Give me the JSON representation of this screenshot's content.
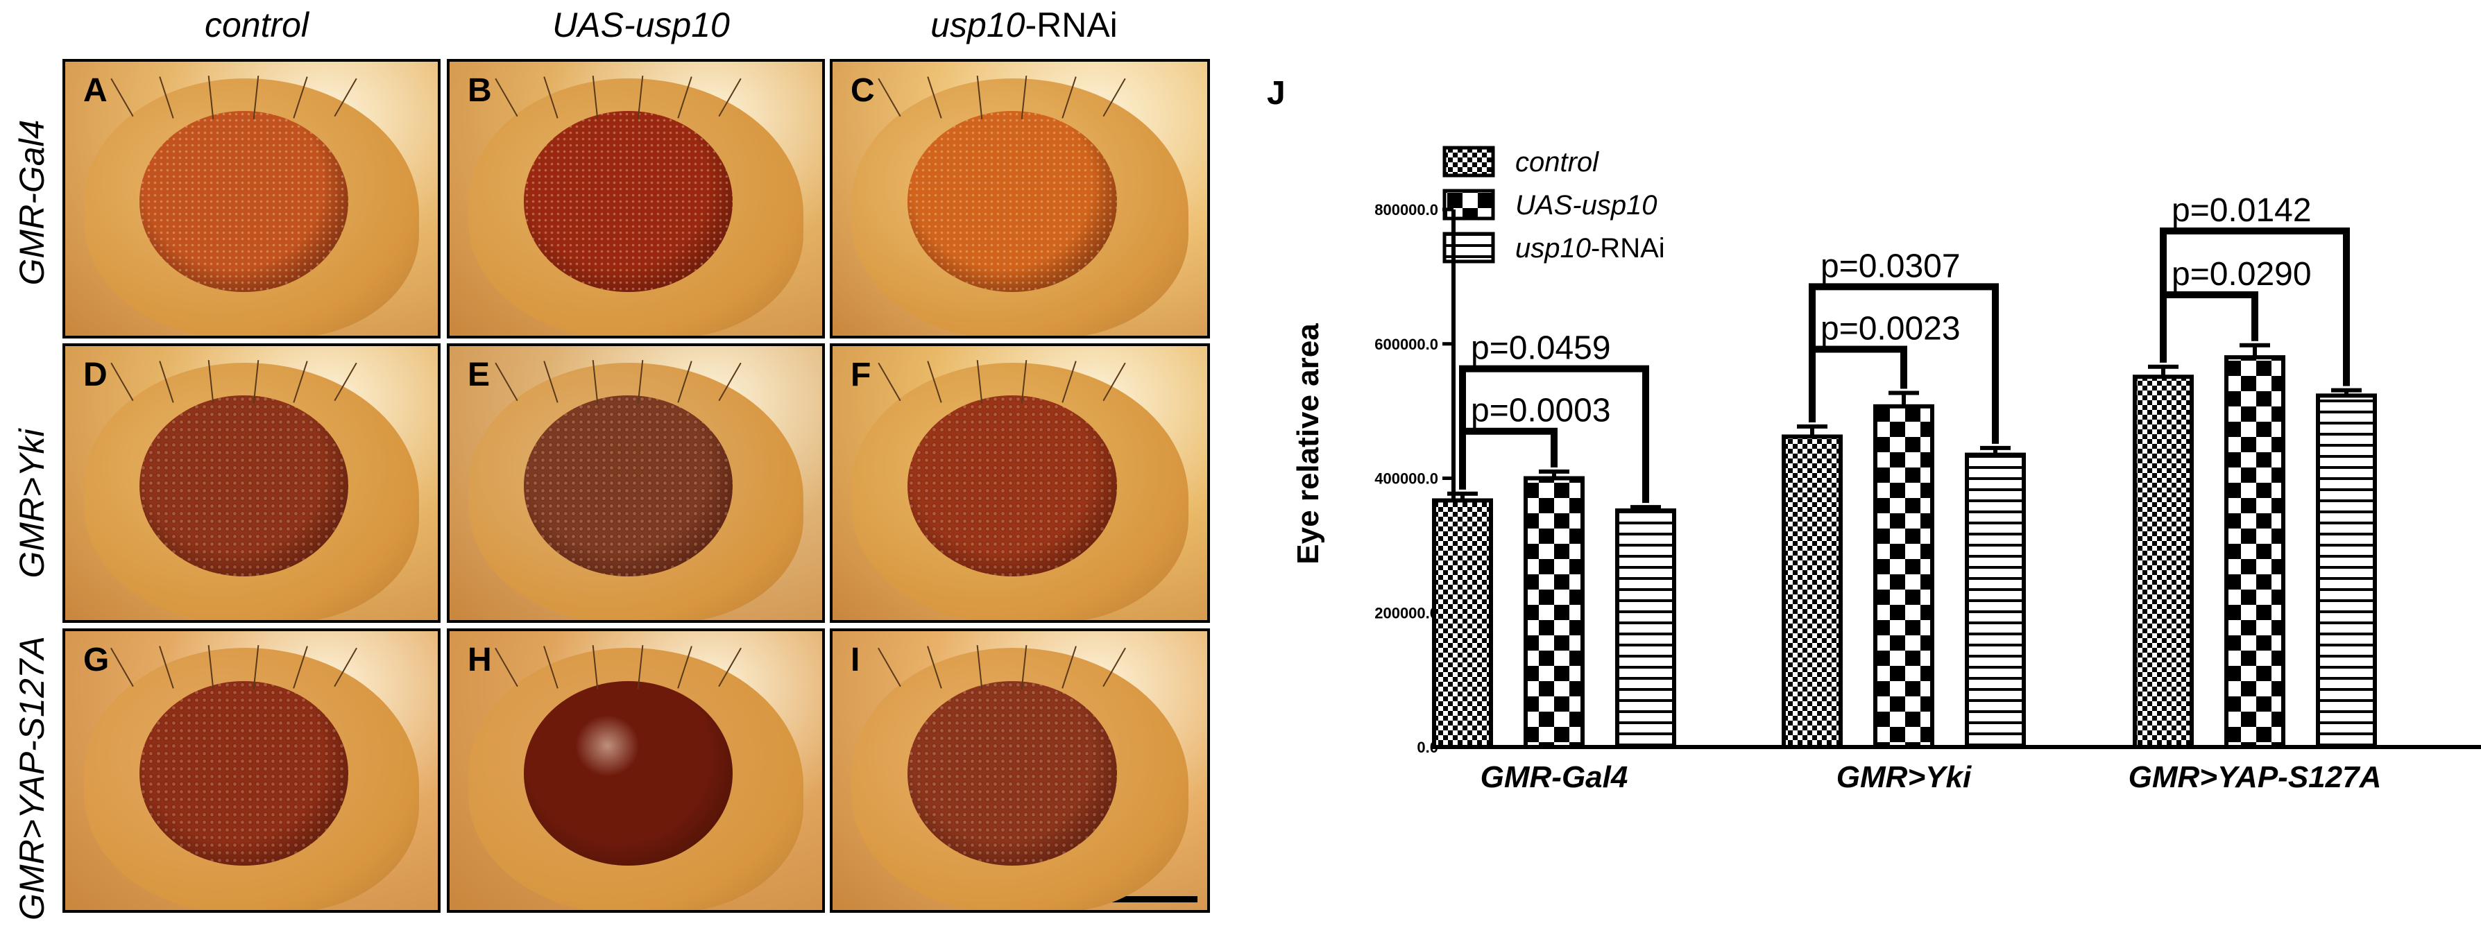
{
  "columns": [
    {
      "label_pre": "control",
      "label_post": ""
    },
    {
      "label_pre": "UAS-usp10",
      "label_post": ""
    },
    {
      "label_pre": "usp10",
      "label_post": "-RNAi"
    }
  ],
  "rows": [
    {
      "label": "GMR-Gal4"
    },
    {
      "label": "GMR>Yki"
    },
    {
      "label": "GMR>YAP-S127A"
    }
  ],
  "panels": [
    {
      "letter": "A",
      "eye_color": "#c2531e",
      "thorax_color": "#e7b66a",
      "texture": "fine"
    },
    {
      "letter": "B",
      "eye_color": "#9a2810",
      "thorax_color": "#e3b063",
      "texture": "fine"
    },
    {
      "letter": "C",
      "eye_color": "#d1641c",
      "thorax_color": "#edc073",
      "texture": "fine"
    },
    {
      "letter": "D",
      "eye_color": "#8e3319",
      "thorax_color": "#e6b466",
      "texture": "rough"
    },
    {
      "letter": "E",
      "eye_color": "#7d3a22",
      "thorax_color": "#dfb274",
      "texture": "rough"
    },
    {
      "letter": "F",
      "eye_color": "#9a3417",
      "thorax_color": "#e9b967",
      "texture": "rough"
    },
    {
      "letter": "G",
      "eye_color": "#8f2e16",
      "thorax_color": "#e4a963",
      "texture": "rough"
    },
    {
      "letter": "H",
      "eye_color": "#6e1a0b",
      "thorax_color": "#e0a45c",
      "texture": "glossy"
    },
    {
      "letter": "I",
      "eye_color": "#8c351c",
      "thorax_color": "#e8b068",
      "texture": "rough"
    }
  ],
  "chart_panel_letter": "J",
  "chart_data": {
    "type": "bar",
    "ylabel": "Eye relative area",
    "xlabel": "",
    "ylim": [
      0,
      800000
    ],
    "yticks": [
      {
        "value": 0,
        "label": "0.0"
      },
      {
        "value": 200000,
        "label": "200000.0"
      },
      {
        "value": 400000,
        "label": "400000.0"
      },
      {
        "value": 600000,
        "label": "600000.0"
      },
      {
        "value": 800000,
        "label": "800000.0"
      }
    ],
    "categories": [
      "GMR-Gal4",
      "GMR>Yki",
      "GMR>YAP-S127A"
    ],
    "series": [
      {
        "name": "control",
        "name_pre": "control",
        "name_post": "",
        "pattern": "fine-check",
        "values": [
          367000,
          462000,
          551000
        ],
        "errors": [
          10000,
          15000,
          15000
        ]
      },
      {
        "name": "UAS-usp10",
        "name_pre": "UAS-usp10",
        "name_post": "",
        "pattern": "coarse-check",
        "values": [
          400000,
          507000,
          580000
        ],
        "errors": [
          10000,
          20000,
          18000
        ]
      },
      {
        "name": "usp10-RNAi",
        "name_pre": "usp10",
        "name_post": "-RNAi",
        "pattern": "hlines",
        "values": [
          352000,
          435000,
          523000
        ],
        "errors": [
          5000,
          10000,
          8000
        ]
      }
    ],
    "significance": [
      {
        "category": 0,
        "from": 0,
        "to": 1,
        "label": "p=0.0003",
        "level": 470000
      },
      {
        "category": 0,
        "from": 0,
        "to": 2,
        "label": "p=0.0459",
        "level": 563000
      },
      {
        "category": 1,
        "from": 0,
        "to": 1,
        "label": "p=0.0023",
        "level": 592000
      },
      {
        "category": 1,
        "from": 0,
        "to": 2,
        "label": "p=0.0307",
        "level": 685000
      },
      {
        "category": 2,
        "from": 0,
        "to": 1,
        "label": "p=0.0290",
        "level": 673000
      },
      {
        "category": 2,
        "from": 0,
        "to": 2,
        "label": "p=0.0142",
        "level": 768000
      }
    ],
    "legend_position": "top-left"
  }
}
